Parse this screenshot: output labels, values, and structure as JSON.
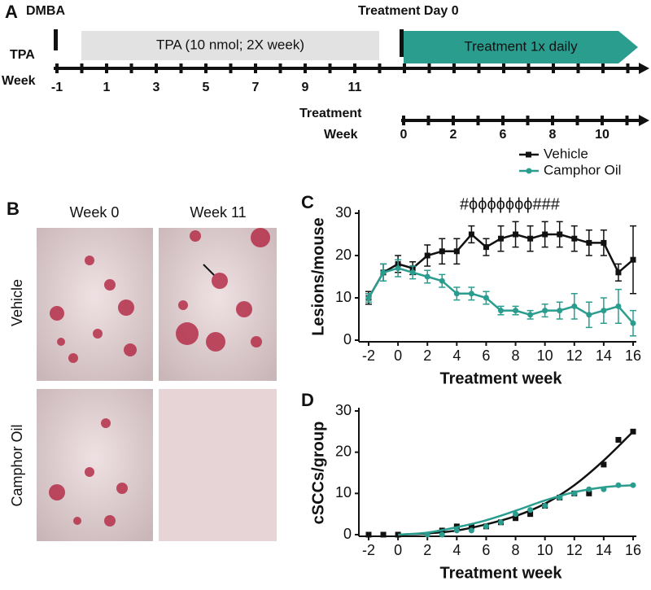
{
  "panel_a": {
    "letter": "A",
    "dmba": "DMBA",
    "treatment_day": "Treatment Day 0",
    "tpa_box": "TPA (10 nmol; 2X week)",
    "treatment_box": "Treatment 1x daily",
    "tpa_label": "TPA",
    "week_label": "Week",
    "tpa_weeks": [
      "-1",
      "1",
      "3",
      "5",
      "7",
      "9",
      "11"
    ],
    "treatment_label": "Treatment",
    "treatment_week_label": "Week",
    "treatment_weeks": [
      "0",
      "2",
      "6",
      "8",
      "10"
    ]
  },
  "panel_b": {
    "letter": "B",
    "columns": [
      "Week 0",
      "Week 11"
    ],
    "rows": [
      "Vehicle",
      "Camphor Oil"
    ]
  },
  "chart_data": [
    {
      "type": "line",
      "panel": "C",
      "ylabel": "Lesions/mouse",
      "xlabel": "Treatment week",
      "annotation": "#ϕϕϕϕϕϕϕ###",
      "x": [
        -2,
        -1,
        0,
        1,
        2,
        3,
        4,
        5,
        6,
        7,
        8,
        9,
        10,
        11,
        12,
        13,
        14,
        15,
        16
      ],
      "xlim": [
        -2,
        16
      ],
      "xticks": [
        -2,
        0,
        2,
        4,
        6,
        8,
        10,
        12,
        14,
        16
      ],
      "ylim": [
        0,
        30
      ],
      "yticks": [
        0,
        10,
        20,
        30
      ],
      "legend": "top-right",
      "series": [
        {
          "name": "Vehicle",
          "color": "#111111",
          "marker": "square",
          "values": [
            10,
            16,
            18,
            17,
            20,
            21,
            21,
            25,
            22,
            24,
            25,
            24,
            25,
            25,
            24,
            23,
            23,
            16,
            19
          ],
          "errors": [
            1.5,
            2,
            2,
            1.5,
            2.5,
            3,
            3,
            2,
            2,
            3,
            3,
            3,
            3,
            3,
            3,
            3,
            3,
            2,
            8
          ]
        },
        {
          "name": "Camphor Oil",
          "color": "#2a9d8f",
          "marker": "circle",
          "values": [
            10,
            16,
            17,
            16,
            15,
            14,
            11,
            11,
            10,
            7,
            7,
            6,
            7,
            7,
            8,
            6,
            7,
            8,
            4
          ],
          "errors": [
            1,
            2,
            2,
            1.5,
            1.5,
            1.5,
            1.5,
            1.5,
            1.5,
            1,
            1,
            1,
            1.5,
            2,
            3,
            3,
            3,
            4,
            3
          ]
        }
      ]
    },
    {
      "type": "scatter",
      "panel": "D",
      "ylabel": "cSCCs/group",
      "xlabel": "Treatment week",
      "xlim": [
        -2,
        16
      ],
      "xticks": [
        -2,
        0,
        2,
        4,
        6,
        8,
        10,
        12,
        14,
        16
      ],
      "ylim": [
        0,
        30
      ],
      "yticks": [
        0,
        10,
        20,
        30
      ],
      "series": [
        {
          "color": "#111111",
          "marker": "square",
          "x": [
            -2,
            -1,
            0,
            3,
            4,
            5,
            6,
            7,
            8,
            9,
            10,
            11,
            12,
            13,
            14,
            15,
            16
          ],
          "values": [
            0,
            0,
            0,
            1,
            2,
            2,
            2,
            3,
            4,
            5,
            7,
            9,
            10,
            10,
            17,
            23,
            25
          ],
          "fit_x": [
            0,
            2,
            4,
            6,
            8,
            10,
            12,
            14,
            16
          ],
          "fit": [
            0,
            0.3,
            1,
            2.5,
            4.5,
            7.5,
            12,
            18,
            25
          ]
        },
        {
          "color": "#2a9d8f",
          "marker": "circle",
          "x": [
            2,
            3,
            4,
            5,
            6,
            7,
            8,
            9,
            10,
            11,
            12,
            13,
            14,
            15,
            16
          ],
          "values": [
            0,
            0,
            1,
            1,
            2,
            3,
            5,
            6,
            7,
            9,
            10,
            11,
            11,
            12,
            12
          ],
          "fit_x": [
            0,
            2,
            4,
            6,
            8,
            10,
            12,
            14,
            16
          ],
          "fit": [
            0,
            0.5,
            1.8,
            3.5,
            5.8,
            8.3,
            10.3,
            11.5,
            12
          ]
        }
      ]
    }
  ]
}
